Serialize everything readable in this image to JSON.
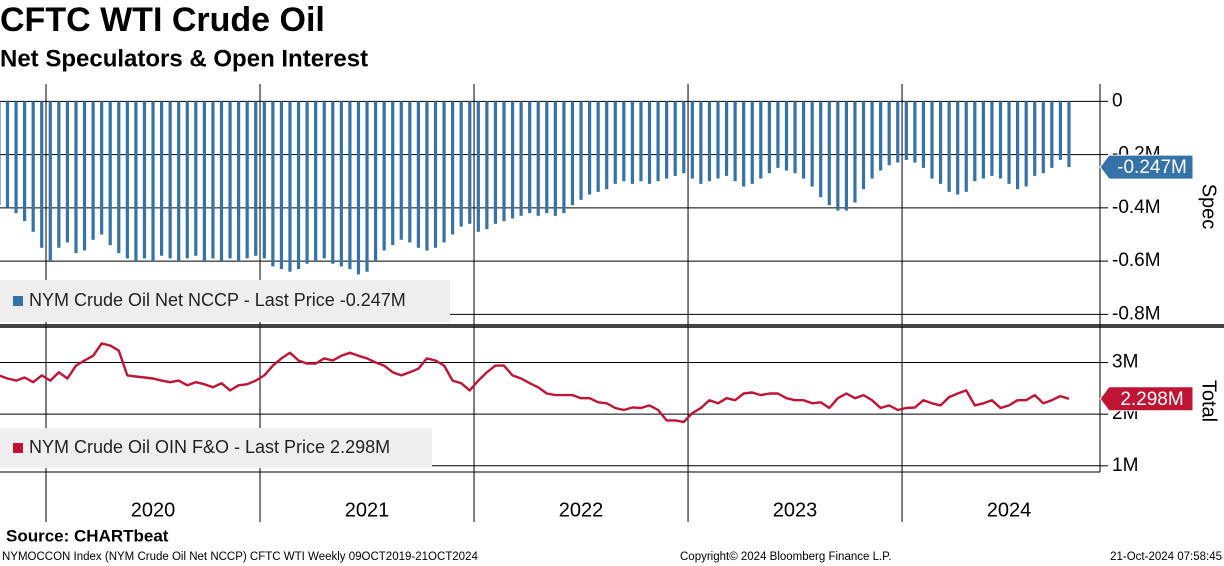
{
  "title": "CFTC WTI Crude Oil",
  "subtitle": "Net Speculators & Open Interest",
  "source": "Source: CHARTbeat",
  "footer": {
    "left": "NYMOCCON Index (NYM Crude Oil Net NCCP) CFTC WTI  Weekly 09OCT2019-21OCT2024",
    "center": "Copyright© 2024 Bloomberg Finance L.P.",
    "right": "21-Oct-2024 07:58:45"
  },
  "chart_data": [
    {
      "type": "bar",
      "ylabel": "Spec",
      "x": [
        2019.78,
        2019.82,
        2019.86,
        2019.9,
        2019.94,
        2019.98,
        2020.02,
        2020.06,
        2020.1,
        2020.14,
        2020.18,
        2020.22,
        2020.26,
        2020.3,
        2020.34,
        2020.38,
        2020.42,
        2020.46,
        2020.5,
        2020.54,
        2020.58,
        2020.62,
        2020.66,
        2020.7,
        2020.74,
        2020.78,
        2020.82,
        2020.86,
        2020.9,
        2020.94,
        2020.98,
        2021.02,
        2021.06,
        2021.1,
        2021.14,
        2021.18,
        2021.22,
        2021.26,
        2021.3,
        2021.34,
        2021.38,
        2021.42,
        2021.46,
        2021.5,
        2021.54,
        2021.58,
        2021.62,
        2021.66,
        2021.7,
        2021.74,
        2021.78,
        2021.82,
        2021.86,
        2021.9,
        2021.94,
        2021.98,
        2022.02,
        2022.06,
        2022.1,
        2022.14,
        2022.18,
        2022.22,
        2022.26,
        2022.3,
        2022.34,
        2022.38,
        2022.42,
        2022.46,
        2022.5,
        2022.54,
        2022.58,
        2022.62,
        2022.66,
        2022.7,
        2022.74,
        2022.78,
        2022.82,
        2022.86,
        2022.9,
        2022.94,
        2022.98,
        2023.02,
        2023.06,
        2023.1,
        2023.14,
        2023.18,
        2023.22,
        2023.26,
        2023.3,
        2023.34,
        2023.38,
        2023.42,
        2023.46,
        2023.5,
        2023.54,
        2023.58,
        2023.62,
        2023.66,
        2023.7,
        2023.74,
        2023.78,
        2023.82,
        2023.86,
        2023.9,
        2023.94,
        2023.98,
        2024.02,
        2024.06,
        2024.1,
        2024.14,
        2024.18,
        2024.22,
        2024.26,
        2024.3,
        2024.34,
        2024.38,
        2024.42,
        2024.46,
        2024.5,
        2024.54,
        2024.58,
        2024.62,
        2024.66,
        2024.7,
        2024.74,
        2024.78
      ],
      "series": [
        {
          "name": "NYM Crude Oil Net NCCP - Last Price -0.247M",
          "color": "#3572a8",
          "values": [
            -0.39,
            -0.4,
            -0.42,
            -0.45,
            -0.49,
            -0.55,
            -0.6,
            -0.55,
            -0.53,
            -0.57,
            -0.56,
            -0.52,
            -0.5,
            -0.54,
            -0.57,
            -0.59,
            -0.6,
            -0.59,
            -0.6,
            -0.58,
            -0.59,
            -0.6,
            -0.59,
            -0.58,
            -0.6,
            -0.59,
            -0.6,
            -0.59,
            -0.6,
            -0.59,
            -0.58,
            -0.59,
            -0.62,
            -0.63,
            -0.64,
            -0.63,
            -0.61,
            -0.6,
            -0.59,
            -0.61,
            -0.62,
            -0.63,
            -0.65,
            -0.64,
            -0.6,
            -0.56,
            -0.54,
            -0.52,
            -0.53,
            -0.55,
            -0.56,
            -0.55,
            -0.53,
            -0.5,
            -0.47,
            -0.46,
            -0.49,
            -0.48,
            -0.46,
            -0.45,
            -0.44,
            -0.43,
            -0.42,
            -0.43,
            -0.42,
            -0.43,
            -0.42,
            -0.39,
            -0.37,
            -0.35,
            -0.34,
            -0.33,
            -0.31,
            -0.3,
            -0.31,
            -0.3,
            -0.31,
            -0.3,
            -0.29,
            -0.28,
            -0.27,
            -0.29,
            -0.31,
            -0.3,
            -0.29,
            -0.28,
            -0.3,
            -0.32,
            -0.31,
            -0.29,
            -0.27,
            -0.25,
            -0.26,
            -0.27,
            -0.29,
            -0.32,
            -0.36,
            -0.39,
            -0.41,
            -0.41,
            -0.38,
            -0.33,
            -0.29,
            -0.26,
            -0.24,
            -0.23,
            -0.22,
            -0.23,
            -0.25,
            -0.29,
            -0.31,
            -0.34,
            -0.35,
            -0.34,
            -0.3,
            -0.29,
            -0.28,
            -0.29,
            -0.31,
            -0.33,
            -0.32,
            -0.28,
            -0.27,
            -0.25,
            -0.22,
            -0.247
          ]
        }
      ],
      "last": {
        "value": -0.247,
        "label": "-0.247M"
      },
      "xlim": [
        2019.785,
        2024.925
      ],
      "xticks": [
        2020,
        2021,
        2022,
        2023,
        2024
      ],
      "ylim": [
        -0.84,
        0.05
      ],
      "yticks": [
        0,
        {
          "value": -0.2,
          "label": "-0.2M"
        },
        {
          "value": -0.4,
          "label": "-0.4M"
        },
        {
          "value": -0.6,
          "label": "-0.6M"
        },
        {
          "value": -0.8,
          "label": "-0.8M"
        }
      ],
      "grid": true
    },
    {
      "type": "line",
      "ylabel": "Total",
      "x": [
        2019.78,
        2019.82,
        2019.86,
        2019.9,
        2019.94,
        2019.98,
        2020.02,
        2020.06,
        2020.1,
        2020.14,
        2020.18,
        2020.22,
        2020.26,
        2020.3,
        2020.34,
        2020.38,
        2020.42,
        2020.46,
        2020.5,
        2020.54,
        2020.58,
        2020.62,
        2020.66,
        2020.7,
        2020.74,
        2020.78,
        2020.82,
        2020.86,
        2020.9,
        2020.94,
        2020.98,
        2021.02,
        2021.06,
        2021.1,
        2021.14,
        2021.18,
        2021.22,
        2021.26,
        2021.3,
        2021.34,
        2021.38,
        2021.42,
        2021.46,
        2021.5,
        2021.54,
        2021.58,
        2021.62,
        2021.66,
        2021.7,
        2021.74,
        2021.78,
        2021.82,
        2021.86,
        2021.9,
        2021.94,
        2021.98,
        2022.02,
        2022.06,
        2022.1,
        2022.14,
        2022.18,
        2022.22,
        2022.26,
        2022.3,
        2022.34,
        2022.38,
        2022.42,
        2022.46,
        2022.5,
        2022.54,
        2022.58,
        2022.62,
        2022.66,
        2022.7,
        2022.74,
        2022.78,
        2022.82,
        2022.86,
        2022.9,
        2022.94,
        2022.98,
        2023.02,
        2023.06,
        2023.1,
        2023.14,
        2023.18,
        2023.22,
        2023.26,
        2023.3,
        2023.34,
        2023.38,
        2023.42,
        2023.46,
        2023.5,
        2023.54,
        2023.58,
        2023.62,
        2023.66,
        2023.7,
        2023.74,
        2023.78,
        2023.82,
        2023.86,
        2023.9,
        2023.94,
        2023.98,
        2024.02,
        2024.06,
        2024.1,
        2024.14,
        2024.18,
        2024.22,
        2024.26,
        2024.3,
        2024.34,
        2024.38,
        2024.42,
        2024.46,
        2024.5,
        2024.54,
        2024.58,
        2024.62,
        2024.66,
        2024.7,
        2024.74,
        2024.78
      ],
      "series": [
        {
          "name": "NYM Crude Oil OIN F&O - Last Price 2.298M",
          "color": "#c01435",
          "values": [
            2.75,
            2.69,
            2.65,
            2.71,
            2.62,
            2.75,
            2.65,
            2.81,
            2.69,
            2.94,
            3.04,
            3.13,
            3.37,
            3.33,
            3.23,
            2.75,
            2.73,
            2.71,
            2.69,
            2.65,
            2.62,
            2.65,
            2.56,
            2.62,
            2.58,
            2.52,
            2.6,
            2.46,
            2.56,
            2.58,
            2.65,
            2.75,
            2.94,
            3.08,
            3.19,
            3.04,
            2.98,
            2.98,
            3.08,
            3.04,
            3.13,
            3.19,
            3.13,
            3.08,
            3.0,
            2.94,
            2.81,
            2.75,
            2.81,
            2.88,
            3.08,
            3.04,
            2.94,
            2.65,
            2.6,
            2.46,
            2.65,
            2.81,
            2.94,
            2.94,
            2.75,
            2.69,
            2.6,
            2.52,
            2.4,
            2.37,
            2.37,
            2.37,
            2.31,
            2.31,
            2.23,
            2.21,
            2.12,
            2.08,
            2.13,
            2.12,
            2.17,
            2.08,
            1.88,
            1.88,
            1.85,
            2.02,
            2.12,
            2.27,
            2.21,
            2.31,
            2.27,
            2.4,
            2.42,
            2.37,
            2.4,
            2.4,
            2.31,
            2.27,
            2.27,
            2.21,
            2.23,
            2.12,
            2.31,
            2.4,
            2.31,
            2.37,
            2.27,
            2.12,
            2.17,
            2.08,
            2.12,
            2.13,
            2.27,
            2.21,
            2.17,
            2.33,
            2.4,
            2.46,
            2.17,
            2.21,
            2.27,
            2.12,
            2.17,
            2.27,
            2.27,
            2.37,
            2.21,
            2.27,
            2.35,
            2.298
          ]
        }
      ],
      "last": {
        "value": 2.298,
        "label": "2.298M"
      },
      "xlim": [
        2019.785,
        2024.925
      ],
      "xticks": [
        {
          "value": 2020,
          "label": "2020"
        },
        {
          "value": 2021,
          "label": "2021"
        },
        {
          "value": 2022,
          "label": "2022"
        },
        {
          "value": 2023,
          "label": "2023"
        },
        {
          "value": 2024,
          "label": "2024"
        }
      ],
      "ylim": [
        0.88,
        3.63
      ],
      "yticks": [
        {
          "value": 3,
          "label": "3M"
        },
        {
          "value": 2,
          "label": "2M"
        },
        {
          "value": 1,
          "label": "1M"
        }
      ],
      "grid": true
    }
  ]
}
